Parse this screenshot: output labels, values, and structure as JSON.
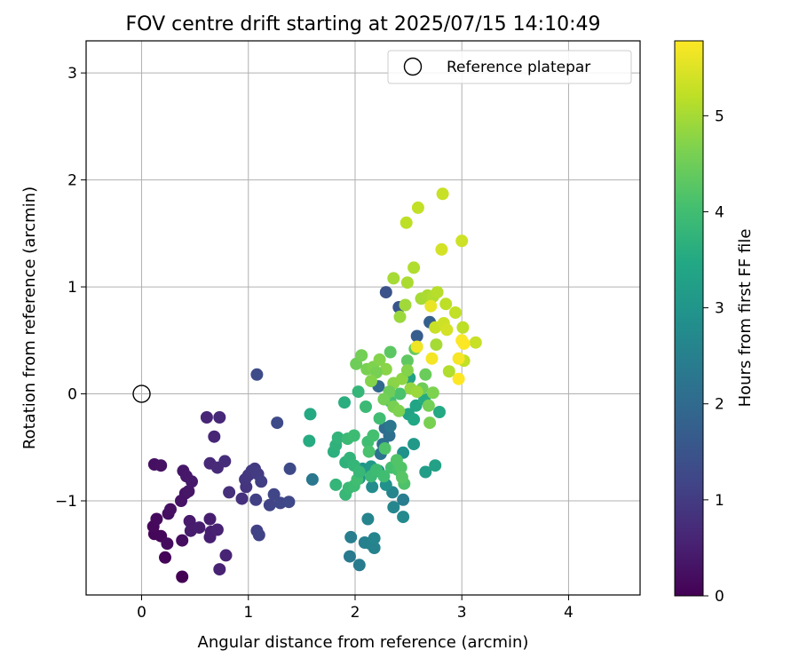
{
  "chart_data": {
    "type": "scatter",
    "title": "FOV centre drift starting at 2025/07/15 14:10:49",
    "xlabel": "Angular distance from reference (arcmin)",
    "ylabel": "Rotation from reference (arcmin)",
    "xlim": [
      -0.52,
      4.67
    ],
    "ylim": [
      -1.88,
      3.3
    ],
    "xticks": [
      0,
      1,
      2,
      3,
      4
    ],
    "yticks": [
      -1,
      0,
      1,
      2,
      3
    ],
    "grid": true,
    "legend": {
      "position": "top-right",
      "entries": [
        "Reference platepar"
      ]
    },
    "reference_point": {
      "x": 0,
      "y": 0,
      "label": "Reference platepar"
    },
    "colorbar": {
      "label": "Hours from first FF file",
      "colormap": "viridis",
      "range": [
        0,
        5.78
      ],
      "ticks": [
        0,
        1,
        2,
        3,
        4,
        5
      ]
    },
    "series": [
      {
        "points": [
          {
            "x": 0.38,
            "y": -1.71,
            "c": 0.0
          },
          {
            "x": 0.22,
            "y": -1.53,
            "c": 0.05
          },
          {
            "x": 0.12,
            "y": -1.31,
            "c": 0.08
          },
          {
            "x": 0.18,
            "y": -1.33,
            "c": 0.1
          },
          {
            "x": 0.11,
            "y": -1.24,
            "c": 0.12
          },
          {
            "x": 0.14,
            "y": -1.17,
            "c": 0.15
          },
          {
            "x": 0.24,
            "y": -1.4,
            "c": 0.18
          },
          {
            "x": 0.38,
            "y": -1.37,
            "c": 0.2
          },
          {
            "x": 0.25,
            "y": -1.12,
            "c": 0.22
          },
          {
            "x": 0.27,
            "y": -1.08,
            "c": 0.24
          },
          {
            "x": 0.12,
            "y": -0.66,
            "c": 0.25
          },
          {
            "x": 0.18,
            "y": -0.67,
            "c": 0.27
          },
          {
            "x": 0.37,
            "y": -1.0,
            "c": 0.3
          },
          {
            "x": 0.41,
            "y": -0.93,
            "c": 0.32
          },
          {
            "x": 0.44,
            "y": -0.91,
            "c": 0.34
          },
          {
            "x": 0.39,
            "y": -0.72,
            "c": 0.36
          },
          {
            "x": 0.42,
            "y": -0.77,
            "c": 0.38
          },
          {
            "x": 0.47,
            "y": -0.82,
            "c": 0.4
          },
          {
            "x": 0.45,
            "y": -1.19,
            "c": 0.42
          },
          {
            "x": 0.46,
            "y": -1.28,
            "c": 0.44
          },
          {
            "x": 0.54,
            "y": -1.25,
            "c": 0.46
          },
          {
            "x": 0.64,
            "y": -1.17,
            "c": 0.48
          },
          {
            "x": 0.64,
            "y": -1.34,
            "c": 0.5
          },
          {
            "x": 0.65,
            "y": -1.29,
            "c": 0.52
          },
          {
            "x": 0.71,
            "y": -1.27,
            "c": 0.54
          },
          {
            "x": 0.73,
            "y": -1.64,
            "c": 0.56
          },
          {
            "x": 0.79,
            "y": -1.51,
            "c": 0.58
          },
          {
            "x": 0.61,
            "y": -0.22,
            "c": 0.6
          },
          {
            "x": 0.68,
            "y": -0.4,
            "c": 0.62
          },
          {
            "x": 0.73,
            "y": -0.22,
            "c": 0.64
          },
          {
            "x": 0.64,
            "y": -0.65,
            "c": 0.66
          },
          {
            "x": 0.71,
            "y": -0.69,
            "c": 0.7
          },
          {
            "x": 0.78,
            "y": -0.63,
            "c": 0.74
          },
          {
            "x": 0.82,
            "y": -0.92,
            "c": 0.78
          },
          {
            "x": 0.94,
            "y": -0.98,
            "c": 0.82
          },
          {
            "x": 0.98,
            "y": -0.87,
            "c": 0.86
          },
          {
            "x": 0.97,
            "y": -0.8,
            "c": 0.9
          },
          {
            "x": 1.0,
            "y": -0.76,
            "c": 0.93
          },
          {
            "x": 1.03,
            "y": -0.72,
            "c": 0.96
          },
          {
            "x": 1.06,
            "y": -0.7,
            "c": 0.99
          },
          {
            "x": 1.09,
            "y": -0.75,
            "c": 1.02
          },
          {
            "x": 1.12,
            "y": -0.82,
            "c": 1.05
          },
          {
            "x": 1.07,
            "y": -0.99,
            "c": 1.08
          },
          {
            "x": 1.08,
            "y": -1.28,
            "c": 1.11
          },
          {
            "x": 1.1,
            "y": -1.32,
            "c": 1.14
          },
          {
            "x": 1.2,
            "y": -1.04,
            "c": 1.17
          },
          {
            "x": 1.24,
            "y": -0.94,
            "c": 1.2
          },
          {
            "x": 1.3,
            "y": -1.02,
            "c": 1.22
          },
          {
            "x": 1.38,
            "y": -1.01,
            "c": 1.25
          },
          {
            "x": 1.39,
            "y": -0.7,
            "c": 1.28
          },
          {
            "x": 1.27,
            "y": -0.27,
            "c": 1.3
          },
          {
            "x": 1.08,
            "y": 0.18,
            "c": 1.32
          },
          {
            "x": 1.6,
            "y": -0.8,
            "c": 2.3
          },
          {
            "x": 1.95,
            "y": -1.52,
            "c": 2.35
          },
          {
            "x": 2.04,
            "y": -1.6,
            "c": 2.4
          },
          {
            "x": 1.96,
            "y": -1.34,
            "c": 2.45
          },
          {
            "x": 2.09,
            "y": -1.39,
            "c": 2.5
          },
          {
            "x": 2.14,
            "y": -1.4,
            "c": 2.52
          },
          {
            "x": 2.18,
            "y": -1.44,
            "c": 2.55
          },
          {
            "x": 2.18,
            "y": -1.35,
            "c": 2.58
          },
          {
            "x": 2.12,
            "y": -1.17,
            "c": 2.6
          },
          {
            "x": 2.36,
            "y": -1.06,
            "c": 2.65
          },
          {
            "x": 2.45,
            "y": -1.15,
            "c": 2.7
          },
          {
            "x": 2.45,
            "y": -0.99,
            "c": 2.45
          },
          {
            "x": 2.35,
            "y": -0.92,
            "c": 2.6
          },
          {
            "x": 2.29,
            "y": 0.95,
            "c": 1.45
          },
          {
            "x": 2.41,
            "y": 0.81,
            "c": 1.55
          },
          {
            "x": 2.58,
            "y": 0.54,
            "c": 1.7
          },
          {
            "x": 2.7,
            "y": 0.67,
            "c": 1.75
          },
          {
            "x": 2.24,
            "y": -0.56,
            "c": 2.2
          },
          {
            "x": 2.28,
            "y": -0.32,
            "c": 2.05
          },
          {
            "x": 2.32,
            "y": -0.39,
            "c": 2.1
          },
          {
            "x": 2.26,
            "y": -0.47,
            "c": 2.15
          },
          {
            "x": 2.22,
            "y": 0.07,
            "c": 1.95
          },
          {
            "x": 2.33,
            "y": -0.3,
            "c": 2.3
          },
          {
            "x": 2.45,
            "y": -0.55,
            "c": 2.9
          },
          {
            "x": 2.55,
            "y": -0.47,
            "c": 3.1
          },
          {
            "x": 2.66,
            "y": -0.73,
            "c": 3.2
          },
          {
            "x": 2.75,
            "y": -0.67,
            "c": 3.3
          },
          {
            "x": 2.51,
            "y": 0.15,
            "c": 3.3
          },
          {
            "x": 2.5,
            "y": -0.19,
            "c": 3.35
          },
          {
            "x": 2.57,
            "y": -0.11,
            "c": 3.4
          },
          {
            "x": 2.55,
            "y": -0.24,
            "c": 3.45
          },
          {
            "x": 2.79,
            "y": -0.17,
            "c": 3.5
          },
          {
            "x": 2.65,
            "y": -0.05,
            "c": 3.55
          },
          {
            "x": 2.16,
            "y": -0.87,
            "c": 2.8
          },
          {
            "x": 2.22,
            "y": -0.72,
            "c": 2.85
          },
          {
            "x": 2.29,
            "y": -0.85,
            "c": 2.9
          },
          {
            "x": 2.04,
            "y": -0.79,
            "c": 3.0
          },
          {
            "x": 2.07,
            "y": -0.7,
            "c": 3.05
          },
          {
            "x": 2.15,
            "y": -0.68,
            "c": 3.1
          },
          {
            "x": 1.58,
            "y": -0.19,
            "c": 3.5
          },
          {
            "x": 1.57,
            "y": -0.44,
            "c": 3.55
          },
          {
            "x": 1.9,
            "y": -0.08,
            "c": 3.6
          },
          {
            "x": 1.8,
            "y": -0.54,
            "c": 3.65
          },
          {
            "x": 1.82,
            "y": -0.48,
            "c": 3.7
          },
          {
            "x": 1.84,
            "y": -0.41,
            "c": 3.75
          },
          {
            "x": 1.82,
            "y": -0.85,
            "c": 3.8
          },
          {
            "x": 1.91,
            "y": -0.94,
            "c": 3.85
          },
          {
            "x": 1.94,
            "y": -0.88,
            "c": 3.9
          },
          {
            "x": 1.99,
            "y": -0.86,
            "c": 3.95
          },
          {
            "x": 2.02,
            "y": -0.8,
            "c": 4.0
          },
          {
            "x": 1.91,
            "y": -0.64,
            "c": 3.7
          },
          {
            "x": 1.95,
            "y": -0.6,
            "c": 3.75
          },
          {
            "x": 1.99,
            "y": -0.67,
            "c": 3.8
          },
          {
            "x": 2.04,
            "y": -0.73,
            "c": 3.85
          },
          {
            "x": 2.15,
            "y": -0.77,
            "c": 3.9
          },
          {
            "x": 2.2,
            "y": -0.71,
            "c": 3.95
          },
          {
            "x": 2.27,
            "y": -0.77,
            "c": 4.0
          },
          {
            "x": 2.34,
            "y": -0.69,
            "c": 4.05
          },
          {
            "x": 2.4,
            "y": -0.71,
            "c": 4.1
          },
          {
            "x": 2.46,
            "y": -0.84,
            "c": 4.15
          },
          {
            "x": 2.43,
            "y": -0.69,
            "c": 4.2
          },
          {
            "x": 1.93,
            "y": -0.42,
            "c": 3.9
          },
          {
            "x": 1.99,
            "y": -0.39,
            "c": 3.95
          },
          {
            "x": 2.12,
            "y": -0.45,
            "c": 4.0
          },
          {
            "x": 2.17,
            "y": -0.39,
            "c": 4.05
          },
          {
            "x": 2.13,
            "y": -0.54,
            "c": 4.1
          },
          {
            "x": 2.03,
            "y": 0.02,
            "c": 3.8
          },
          {
            "x": 2.1,
            "y": -0.12,
            "c": 3.9
          },
          {
            "x": 2.23,
            "y": -0.23,
            "c": 4.0
          },
          {
            "x": 2.33,
            "y": -0.07,
            "c": 4.05
          },
          {
            "x": 2.42,
            "y": -0.0,
            "c": 4.1
          },
          {
            "x": 2.28,
            "y": -0.51,
            "c": 4.15
          },
          {
            "x": 2.39,
            "y": -0.62,
            "c": 4.2
          },
          {
            "x": 2.44,
            "y": -0.78,
            "c": 4.25
          },
          {
            "x": 2.33,
            "y": 0.39,
            "c": 4.3
          },
          {
            "x": 2.49,
            "y": 0.31,
            "c": 4.35
          },
          {
            "x": 2.56,
            "y": 0.42,
            "c": 4.4
          },
          {
            "x": 2.66,
            "y": 0.18,
            "c": 4.45
          },
          {
            "x": 2.63,
            "y": 0.05,
            "c": 4.5
          },
          {
            "x": 2.69,
            "y": -0.11,
            "c": 4.55
          },
          {
            "x": 2.7,
            "y": -0.27,
            "c": 4.6
          },
          {
            "x": 2.73,
            "y": 0.01,
            "c": 4.65
          },
          {
            "x": 2.01,
            "y": 0.28,
            "c": 4.5
          },
          {
            "x": 2.06,
            "y": 0.36,
            "c": 4.55
          },
          {
            "x": 2.11,
            "y": 0.23,
            "c": 4.6
          },
          {
            "x": 2.17,
            "y": 0.25,
            "c": 4.65
          },
          {
            "x": 2.23,
            "y": 0.32,
            "c": 4.7
          },
          {
            "x": 2.29,
            "y": 0.23,
            "c": 4.75
          },
          {
            "x": 2.2,
            "y": 0.2,
            "c": 4.6
          },
          {
            "x": 2.15,
            "y": 0.12,
            "c": 4.7
          },
          {
            "x": 2.36,
            "y": 0.1,
            "c": 4.75
          },
          {
            "x": 2.44,
            "y": 0.14,
            "c": 4.8
          },
          {
            "x": 2.52,
            "y": 0.05,
            "c": 4.85
          },
          {
            "x": 2.58,
            "y": 0.02,
            "c": 4.9
          },
          {
            "x": 2.32,
            "y": 0.02,
            "c": 4.5
          },
          {
            "x": 2.27,
            "y": -0.05,
            "c": 4.55
          },
          {
            "x": 2.36,
            "y": -0.12,
            "c": 4.6
          },
          {
            "x": 2.41,
            "y": -0.16,
            "c": 4.65
          },
          {
            "x": 2.49,
            "y": 0.22,
            "c": 4.7
          },
          {
            "x": 2.42,
            "y": 0.72,
            "c": 4.9
          },
          {
            "x": 2.47,
            "y": 0.83,
            "c": 4.95
          },
          {
            "x": 2.36,
            "y": 1.08,
            "c": 5.0
          },
          {
            "x": 2.49,
            "y": 1.04,
            "c": 5.05
          },
          {
            "x": 2.55,
            "y": 1.18,
            "c": 5.1
          },
          {
            "x": 2.48,
            "y": 1.6,
            "c": 5.2
          },
          {
            "x": 2.59,
            "y": 1.74,
            "c": 5.25
          },
          {
            "x": 2.82,
            "y": 1.87,
            "c": 5.3
          },
          {
            "x": 3.0,
            "y": 1.43,
            "c": 5.35
          },
          {
            "x": 2.81,
            "y": 1.35,
            "c": 5.4
          },
          {
            "x": 2.62,
            "y": 0.89,
            "c": 5.0
          },
          {
            "x": 2.68,
            "y": 0.92,
            "c": 5.05
          },
          {
            "x": 2.73,
            "y": 0.91,
            "c": 5.1
          },
          {
            "x": 2.77,
            "y": 0.95,
            "c": 5.15
          },
          {
            "x": 2.85,
            "y": 0.84,
            "c": 5.2
          },
          {
            "x": 2.94,
            "y": 0.76,
            "c": 5.25
          },
          {
            "x": 2.75,
            "y": 0.62,
            "c": 5.3
          },
          {
            "x": 2.83,
            "y": 0.66,
            "c": 5.35
          },
          {
            "x": 2.86,
            "y": 0.6,
            "c": 5.4
          },
          {
            "x": 2.76,
            "y": 0.46,
            "c": 5.0
          },
          {
            "x": 2.88,
            "y": 0.21,
            "c": 5.1
          },
          {
            "x": 3.01,
            "y": 0.62,
            "c": 5.2
          },
          {
            "x": 3.02,
            "y": 0.31,
            "c": 5.25
          },
          {
            "x": 3.13,
            "y": 0.48,
            "c": 5.3
          },
          {
            "x": 2.71,
            "y": 0.82,
            "c": 5.6
          },
          {
            "x": 2.58,
            "y": 0.44,
            "c": 5.65
          },
          {
            "x": 2.72,
            "y": 0.33,
            "c": 5.7
          },
          {
            "x": 2.97,
            "y": 0.33,
            "c": 5.72
          },
          {
            "x": 3.0,
            "y": 0.5,
            "c": 5.75
          },
          {
            "x": 3.02,
            "y": 0.47,
            "c": 5.77
          },
          {
            "x": 2.97,
            "y": 0.14,
            "c": 5.78
          }
        ]
      }
    ]
  }
}
